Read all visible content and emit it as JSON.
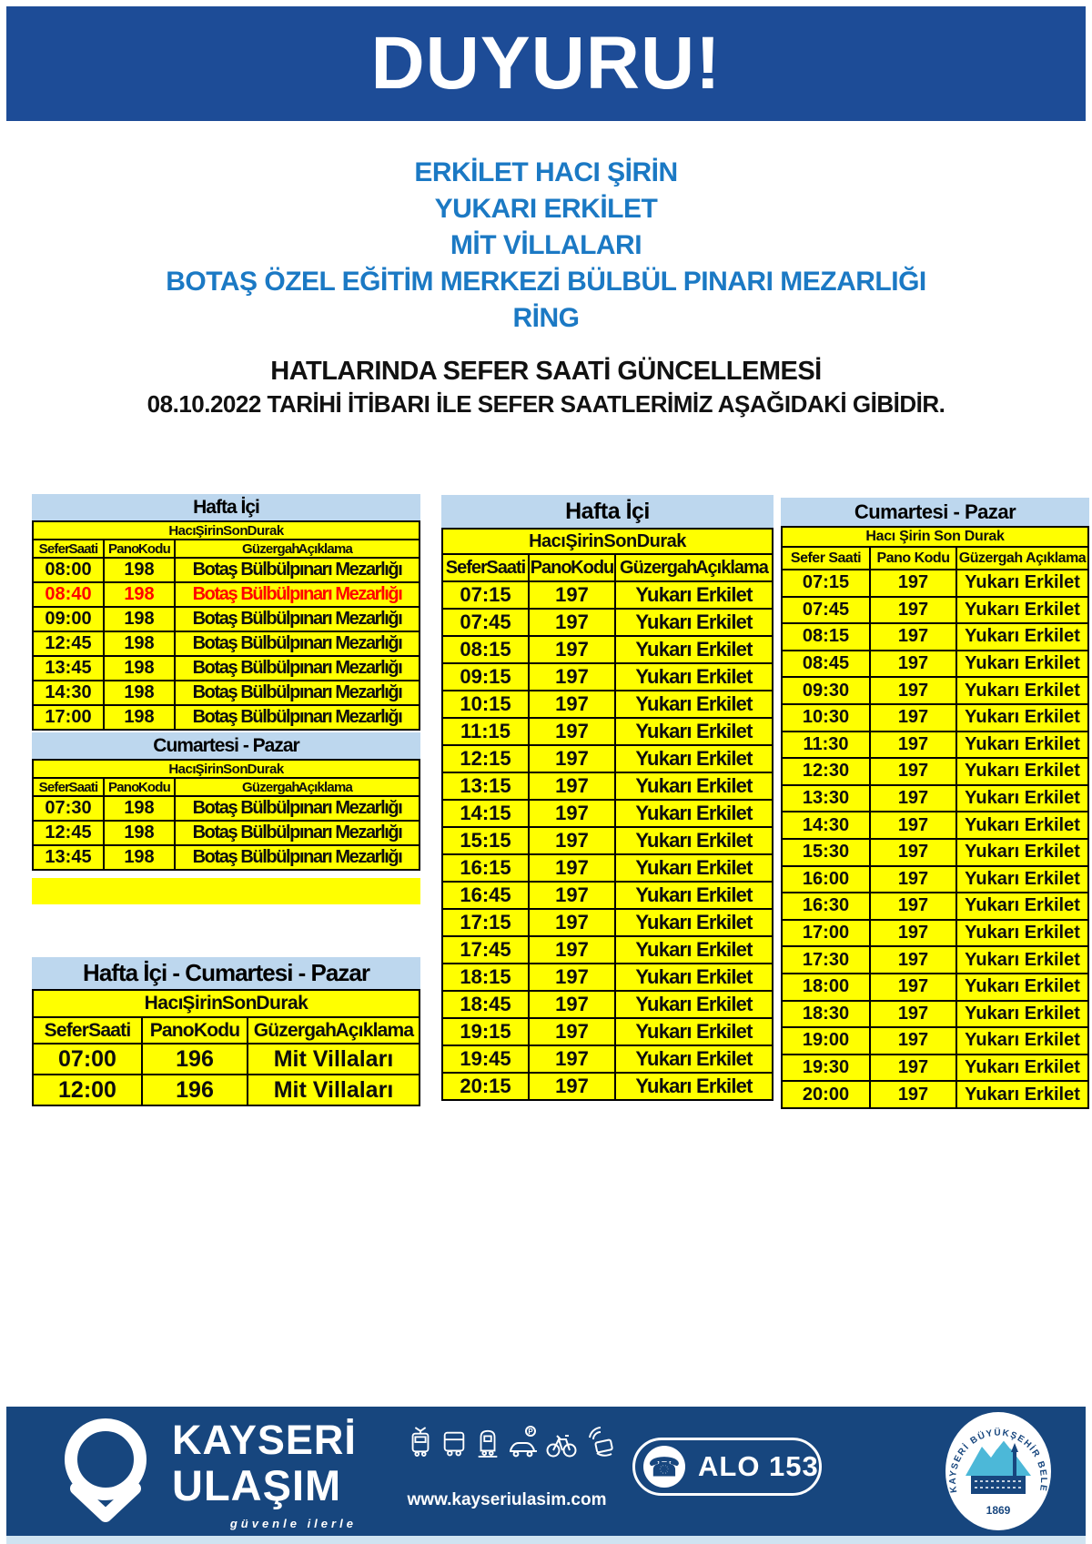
{
  "banner": {
    "title": "DUYURU!"
  },
  "heading": {
    "lines": [
      "ERKİLET HACI ŞİRİN",
      "YUKARI ERKİLET",
      "MİT VİLLALARI",
      "BOTAŞ ÖZEL EĞİTİM MERKEZİ BÜLBÜL PINARI MEZARLIĞI",
      "RİNG"
    ],
    "update_line": "HATLARINDA SEFER SAATİ GÜNCELLEMESİ",
    "date_line": "08.10.2022 TARİHİ İTİBARI İLE SEFER SAATLERİMİZ AŞAĞIDAKİ GİBİDİR."
  },
  "tables": {
    "columns": [
      "Sefer Saati",
      "Pano Kodu",
      "Güzergah Açıklama"
    ],
    "stop_header": "Hacı Şirin Son Durak",
    "left_weekday": {
      "title": "Hafta İçi",
      "code": "198",
      "route": "Botaş Bülbülpınarı Mezarlığı",
      "highlight_time": "08:40",
      "times": [
        "08:00",
        "08:40",
        "09:00",
        "12:45",
        "13:45",
        "14:30",
        "17:00"
      ]
    },
    "left_weekend": {
      "title": "Cumartesi - Pazar",
      "code": "198",
      "route": "Botaş Bülbülpınarı Mezarlığı",
      "times": [
        "07:30",
        "12:45",
        "13:45"
      ]
    },
    "left_all_days": {
      "title": "Hafta İçi - Cumartesi - Pazar",
      "code": "196",
      "route": "Mit Villaları",
      "times": [
        "07:00",
        "12:00"
      ]
    },
    "mid_weekday": {
      "title": "Hafta İçi",
      "code": "197",
      "route": "Yukarı Erkilet",
      "times": [
        "07:15",
        "07:45",
        "08:15",
        "09:15",
        "10:15",
        "11:15",
        "12:15",
        "13:15",
        "14:15",
        "15:15",
        "16:15",
        "16:45",
        "17:15",
        "17:45",
        "18:15",
        "18:45",
        "19:15",
        "19:45",
        "20:15"
      ]
    },
    "right_weekend": {
      "title": "Cumartesi - Pazar",
      "code": "197",
      "route": "Yukarı Erkilet",
      "times": [
        "07:15",
        "07:45",
        "08:15",
        "08:45",
        "09:30",
        "10:30",
        "11:30",
        "12:30",
        "13:30",
        "14:30",
        "15:30",
        "16:00",
        "16:30",
        "17:00",
        "17:30",
        "18:00",
        "18:30",
        "19:00",
        "19:30",
        "20:00"
      ]
    }
  },
  "footer": {
    "brand_line1": "KAYSERİ",
    "brand_line2": "ULAŞIM",
    "tagline": "güvenle ilerle",
    "website": "www.kayseriulasim.com",
    "hotline": "ALO 153",
    "phone_glyph": "☎",
    "seal_text": "KAYSERİ BÜYÜKŞEHİR BELEDİYESİ",
    "seal_year": "1869"
  },
  "colors": {
    "banner_blue": "#1d4c97",
    "footer_blue": "#17467e",
    "heading_blue": "#1b79c4",
    "table_title_blue": "#bdd7ee",
    "cell_yellow": "#ffff00",
    "highlight_red": "#ff0000",
    "seal_cyan": "#4cb8d8"
  }
}
